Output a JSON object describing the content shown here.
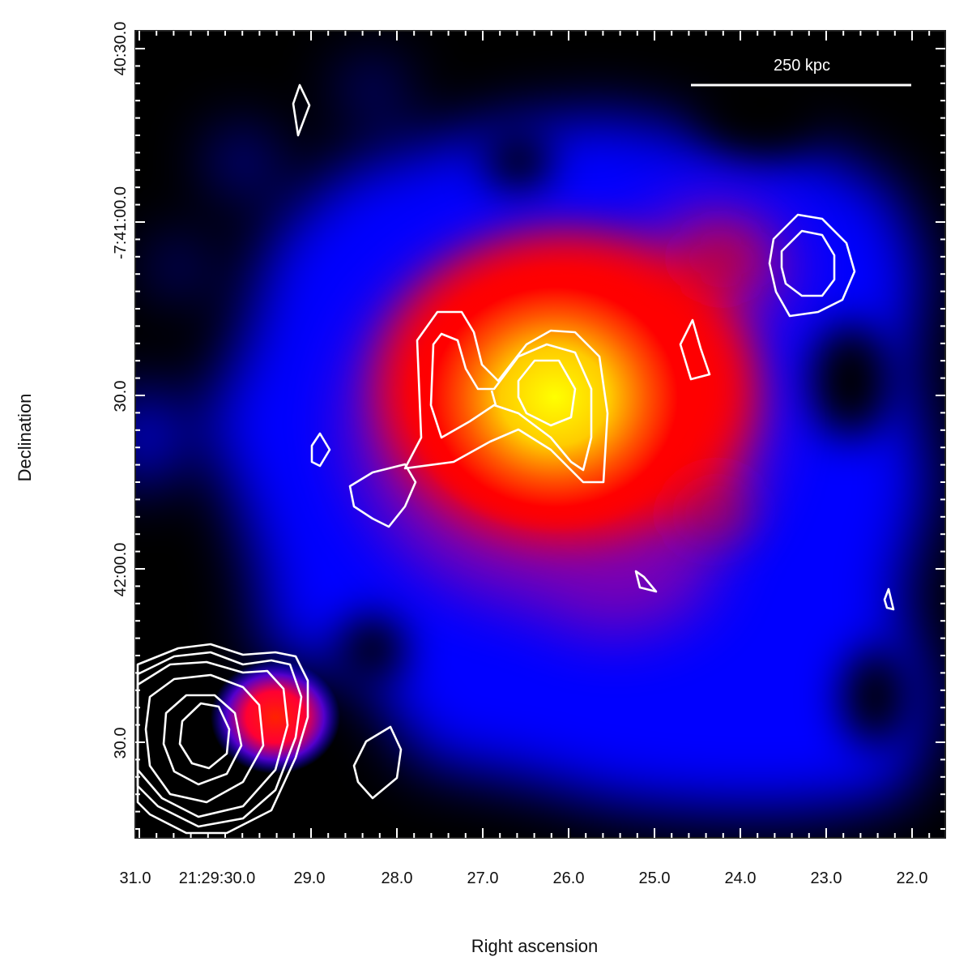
{
  "figure": {
    "xlabel": "Right ascension",
    "ylabel": "Declination",
    "scale_bar_label": "250 kpc",
    "x_ticks": [
      "31.0",
      "21:29:30.0",
      "29.0",
      "28.0",
      "27.0",
      "26.0",
      "25.0",
      "24.0",
      "23.0",
      "22.0"
    ],
    "y_ticks": [
      "40:30.0",
      "-7:41:00.0",
      "30.0",
      "42:00.0",
      "30.0"
    ],
    "colors": {
      "background": "#000000",
      "contour": "#ffffff",
      "low": "#0000ff",
      "mid": "#ff0000",
      "high": "#ffff00"
    }
  }
}
